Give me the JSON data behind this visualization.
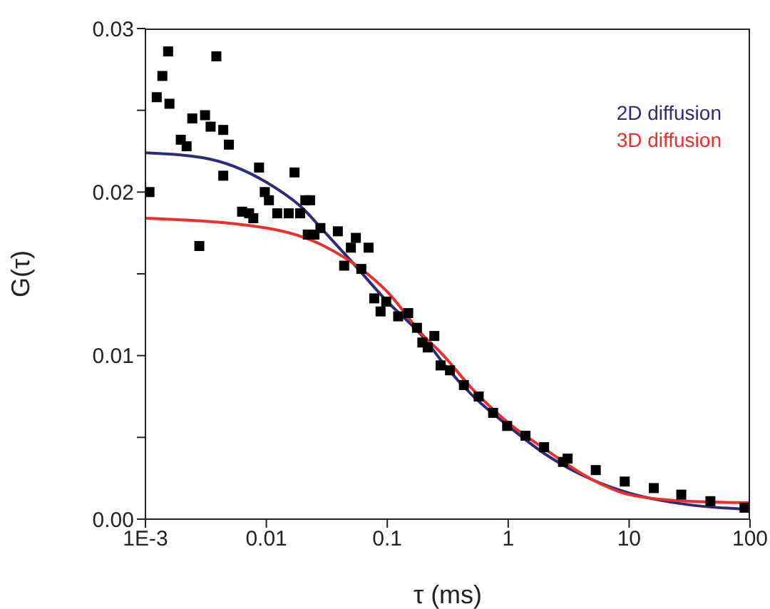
{
  "chart_data": {
    "type": "scatter",
    "xlabel": "τ (ms)",
    "ylabel": "G(τ)",
    "log": "x",
    "xlim": [
      0.001,
      100
    ],
    "ylim": [
      0,
      0.03
    ],
    "xticks": [
      {
        "value": 0.001,
        "label": "1E-3"
      },
      0.01,
      0.1,
      1,
      10,
      100
    ],
    "yticks": [
      {
        "value": 0,
        "label": "0.00"
      },
      {
        "value": 0.005,
        "label": null
      },
      {
        "value": 0.01,
        "label": "0.01"
      },
      {
        "value": 0.015,
        "label": null
      },
      {
        "value": 0.02,
        "label": "0.02"
      },
      {
        "value": 0.025,
        "label": null
      },
      {
        "value": 0.03,
        "label": "0.03"
      }
    ],
    "legend": "top right",
    "series": [
      {
        "marker": "square",
        "color": "#000000",
        "x": [
          0.00108,
          0.00124,
          0.00138,
          0.00154,
          0.00158,
          0.00196,
          0.00219,
          0.00244,
          0.00279,
          0.00311,
          0.00346,
          0.00386,
          0.0044,
          0.0044,
          0.0049,
          0.0063,
          0.0072,
          0.0078,
          0.0087,
          0.0097,
          0.0105,
          0.0123,
          0.0153,
          0.0171,
          0.019,
          0.021,
          0.022,
          0.023,
          0.025,
          0.028,
          0.039,
          0.044,
          0.05,
          0.055,
          0.061,
          0.07,
          0.078,
          0.088,
          0.098,
          0.123,
          0.149,
          0.176,
          0.195,
          0.216,
          0.245,
          0.276,
          0.33,
          0.43,
          0.57,
          0.75,
          0.98,
          1.39,
          1.98,
          2.84,
          3.1,
          5.3,
          9.2,
          16,
          27,
          47,
          90
        ],
        "values": [
          0.02,
          0.0258,
          0.0271,
          0.0286,
          0.0254,
          0.0232,
          0.0228,
          0.0245,
          0.0167,
          0.0247,
          0.024,
          0.0283,
          0.0238,
          0.021,
          0.0229,
          0.0188,
          0.0187,
          0.0184,
          0.0215,
          0.02,
          0.0195,
          0.0187,
          0.0187,
          0.0212,
          0.0187,
          0.0195,
          0.0174,
          0.0195,
          0.0174,
          0.0178,
          0.0176,
          0.0155,
          0.0166,
          0.0172,
          0.0153,
          0.0166,
          0.0135,
          0.0127,
          0.0133,
          0.0124,
          0.0126,
          0.0117,
          0.0108,
          0.0105,
          0.0112,
          0.0094,
          0.0091,
          0.0082,
          0.0075,
          0.0065,
          0.0057,
          0.0051,
          0.0044,
          0.0035,
          0.0037,
          0.003,
          0.0023,
          0.0019,
          0.0015,
          0.0011,
          0.0007
        ]
      },
      {
        "type": "line",
        "name": "2D diffusion",
        "color": "#2e2a7a",
        "marker": "none",
        "x": [
          0.001,
          0.003,
          0.01,
          0.02,
          0.03,
          0.05,
          0.1,
          0.2,
          0.3,
          0.5,
          1,
          2,
          5,
          10,
          30,
          100
        ],
        "values": [
          0.0224,
          0.0221,
          0.0206,
          0.019,
          0.0176,
          0.0158,
          0.0133,
          0.0111,
          0.0094,
          0.0076,
          0.0057,
          0.004,
          0.0024,
          0.0016,
          0.0009,
          0.0006
        ]
      },
      {
        "type": "line",
        "name": "3D diffusion",
        "color": "#e8302c",
        "marker": "none",
        "x": [
          0.001,
          0.01,
          0.03,
          0.1,
          0.2,
          0.276,
          0.5,
          1,
          2,
          5,
          10,
          30,
          100
        ],
        "values": [
          0.0184,
          0.0178,
          0.0167,
          0.0139,
          0.0112,
          0.0102,
          0.008,
          0.0059,
          0.0043,
          0.0024,
          0.0015,
          0.0011,
          0.001
        ]
      }
    ]
  }
}
